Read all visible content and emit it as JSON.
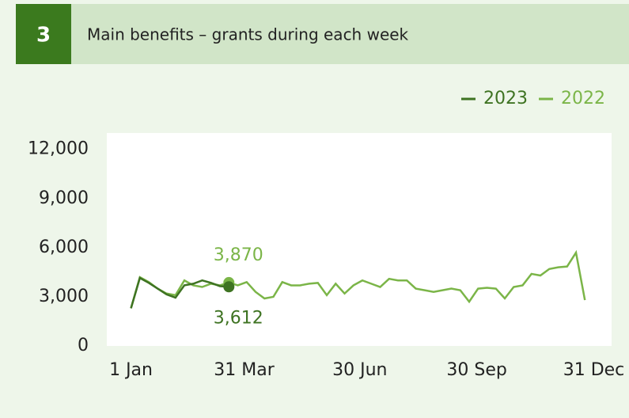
{
  "chart_data": {
    "type": "line",
    "number": "3",
    "title": "Main benefits – grants during each week",
    "x": [
      0,
      7,
      14,
      21,
      28,
      35,
      42,
      49,
      56,
      63,
      70,
      77,
      84,
      91,
      98,
      105,
      112,
      119,
      126,
      133,
      140,
      147,
      154,
      161,
      168,
      175,
      182,
      189,
      196,
      203,
      210,
      217,
      224,
      231,
      238,
      245,
      252,
      259,
      266,
      273,
      280,
      287,
      294,
      301,
      308,
      315,
      322,
      329,
      336,
      343,
      350,
      357
    ],
    "series": [
      {
        "name": "2023",
        "color": "#3e7322",
        "values": [
          2300,
          4150,
          3850,
          3500,
          3150,
          2950,
          3700,
          3800,
          4000,
          3850,
          3650,
          3612,
          null,
          null,
          null,
          null,
          null,
          null,
          null,
          null,
          null,
          null,
          null,
          null,
          null,
          null,
          null,
          null,
          null,
          null,
          null,
          null,
          null,
          null,
          null,
          null,
          null,
          null,
          null,
          null,
          null,
          null,
          null,
          null,
          null,
          null,
          null,
          null,
          null,
          null,
          null,
          null
        ],
        "value_labels": [
          null,
          null,
          null,
          null,
          null,
          null,
          null,
          null,
          null,
          null,
          null,
          "3,612",
          null,
          null,
          null,
          null,
          null,
          null,
          null,
          null,
          null,
          null,
          null,
          null,
          null,
          null,
          null,
          null,
          null,
          null,
          null,
          null,
          null,
          null,
          null,
          null,
          null,
          null,
          null,
          null,
          null,
          null,
          null,
          null,
          null,
          null,
          null,
          null,
          null,
          null,
          null,
          null
        ]
      },
      {
        "name": "2022",
        "color": "#7bb548",
        "values": [
          2300,
          4200,
          3900,
          3500,
          3200,
          3100,
          4000,
          3700,
          3600,
          3800,
          3700,
          3870,
          3700,
          3900,
          3300,
          2900,
          3000,
          3900,
          3700,
          3700,
          3800,
          3850,
          3100,
          3800,
          3200,
          3700,
          4000,
          3800,
          3600,
          4100,
          4000,
          4000,
          3500,
          3400,
          3300,
          3400,
          3500,
          3400,
          2700,
          3500,
          3550,
          3500,
          2900,
          3600,
          3700,
          4400,
          4300,
          4700,
          4800,
          4850,
          5700,
          2800
        ],
        "value_labels": [
          null,
          null,
          null,
          null,
          null,
          null,
          null,
          null,
          null,
          null,
          null,
          "3,870",
          null,
          null,
          null,
          null,
          null,
          null,
          null,
          null,
          null,
          null,
          null,
          null,
          null,
          null,
          null,
          null,
          null,
          null,
          null,
          null,
          null,
          null,
          null,
          null,
          null,
          null,
          null,
          null,
          null,
          null,
          null,
          null,
          null,
          null,
          null,
          null,
          null,
          null,
          null,
          null
        ]
      }
    ],
    "xlim": [
      -19,
      378
    ],
    "xticks": [
      {
        "value": 0,
        "label": "1 Jan"
      },
      {
        "value": 89,
        "label": "31 Mar"
      },
      {
        "value": 180,
        "label": "30 Jun"
      },
      {
        "value": 272,
        "label": "30 Sep"
      },
      {
        "value": 364,
        "label": "31 Dec"
      }
    ],
    "ylim": [
      0,
      13000
    ],
    "yticks": [
      0,
      {
        "value": 3000,
        "label": "3,000"
      },
      {
        "value": 6000,
        "label": "6,000"
      },
      {
        "value": 9000,
        "label": "9,000"
      },
      {
        "value": 12000,
        "label": "12,000"
      }
    ],
    "legend": "top-right"
  }
}
